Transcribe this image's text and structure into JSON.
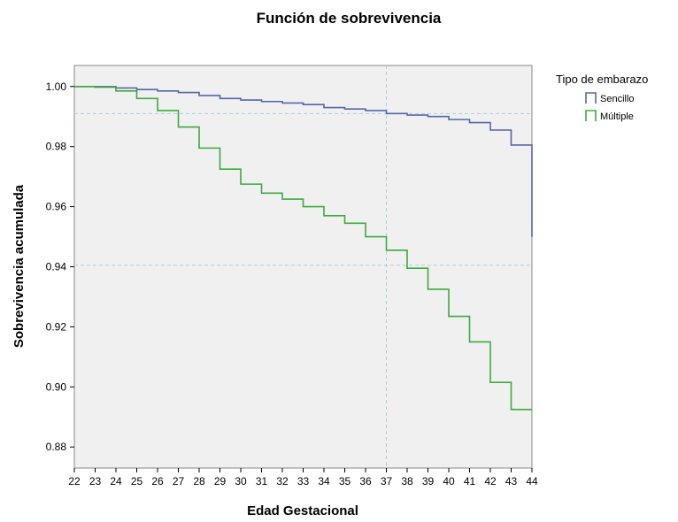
{
  "chart_data": {
    "type": "line",
    "subtype": "step",
    "title": "Función de sobrevivencia",
    "xlabel": "Edad Gestacional",
    "ylabel": "Sobrevivencia acumulada",
    "x": [
      22,
      23,
      24,
      25,
      26,
      27,
      28,
      29,
      30,
      31,
      32,
      33,
      34,
      35,
      36,
      37,
      38,
      39,
      40,
      41,
      42,
      43,
      44
    ],
    "xticks": [
      "22",
      "23",
      "24",
      "25",
      "26",
      "27",
      "28",
      "29",
      "30",
      "31",
      "32",
      "33",
      "34",
      "35",
      "36",
      "37",
      "38",
      "39",
      "40",
      "41",
      "42",
      "43",
      "44"
    ],
    "ylim": [
      0.873,
      1.007
    ],
    "yticks": [
      1.0,
      0.98,
      0.96,
      0.94,
      0.92,
      0.9,
      0.88
    ],
    "ytick_labels": [
      "1.00",
      "0.98",
      "0.96",
      "0.94",
      "0.92",
      "0.90",
      "0.88"
    ],
    "grid": false,
    "background": "#f0f0f0",
    "reference_lines": {
      "x": 37,
      "y": [
        0.991,
        0.9405
      ],
      "color": "#a9cfe6"
    },
    "legend": {
      "title": "Tipo de embarazo",
      "position": "right",
      "entries": [
        "Sencillo",
        "Múltiple"
      ]
    },
    "series": [
      {
        "name": "Sencillo",
        "color": "#5566aa",
        "values": [
          1.0,
          0.9998,
          0.9995,
          0.999,
          0.9985,
          0.998,
          0.997,
          0.996,
          0.9955,
          0.995,
          0.9945,
          0.994,
          0.993,
          0.9925,
          0.992,
          0.991,
          0.9905,
          0.99,
          0.989,
          0.988,
          0.9855,
          0.9805,
          0.9725
        ],
        "end_drop": 0.95
      },
      {
        "name": "Múltiple",
        "color": "#3dab3d",
        "values": [
          1.0,
          1.0,
          0.9985,
          0.996,
          0.992,
          0.9865,
          0.9795,
          0.9725,
          0.9675,
          0.9645,
          0.9625,
          0.96,
          0.957,
          0.9545,
          0.95,
          0.9455,
          0.9395,
          0.9325,
          0.9235,
          0.915,
          0.9015,
          0.8925,
          0.8925
        ]
      }
    ]
  }
}
